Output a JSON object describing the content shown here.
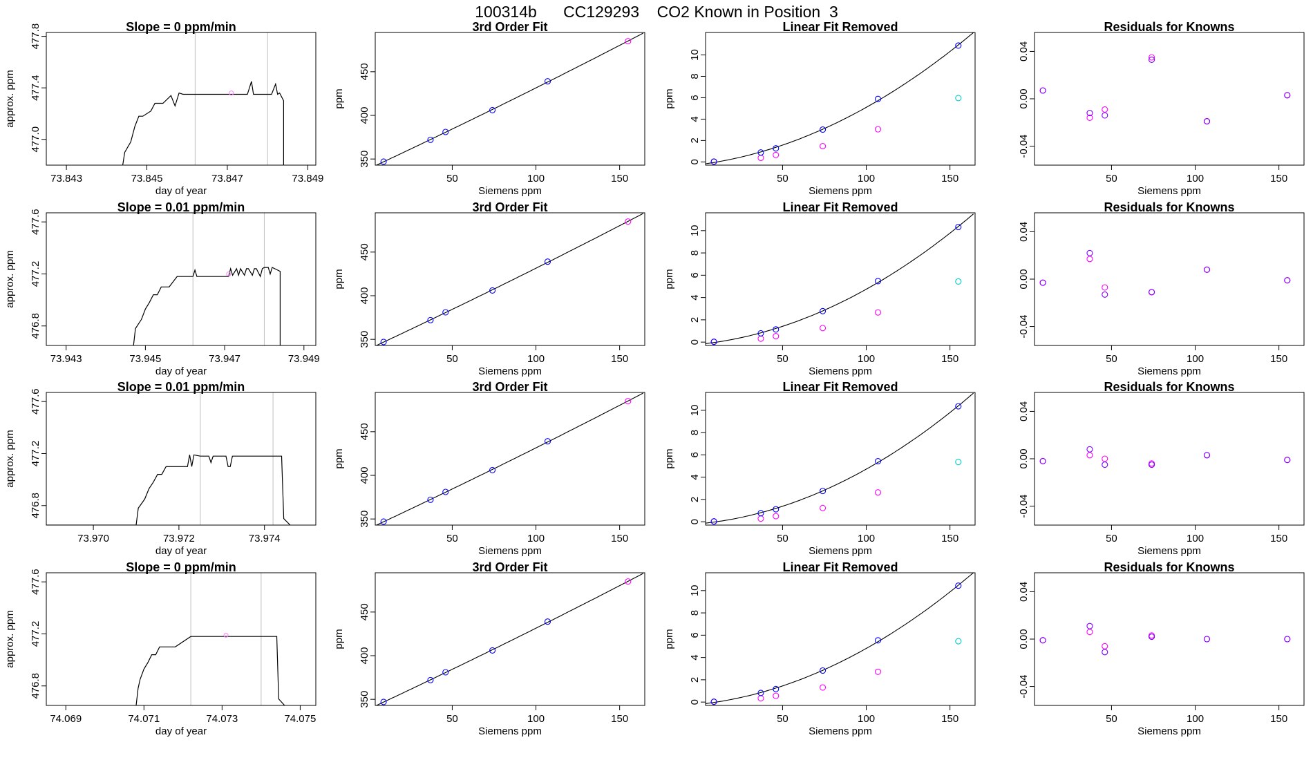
{
  "title": "100314b      CC129293    CO2 Known in Position  3",
  "colors": {
    "line": "#000000",
    "vline": "#bebebe",
    "blue": "#0000ff",
    "magenta": "#ff00ff",
    "cyan": "#00cccc",
    "purple": "#7f00ff",
    "pink": "#ff80ff"
  },
  "chart_data": [
    {
      "type": "line",
      "title": "Slope =  0  ppm/min",
      "xlabel": "day of year",
      "ylabel": "approx. ppm",
      "xlim": [
        73.8425,
        73.8492
      ],
      "ylim": [
        476.8,
        477.83
      ],
      "xticks": [
        "73.843",
        "73.845",
        "73.847",
        "73.849"
      ],
      "yticks": [
        "477.0",
        "477.4",
        "477.8"
      ],
      "vlines": [
        73.8462,
        73.848
      ],
      "series": [
        {
          "x": [
            73.8444,
            73.84445,
            73.8446,
            73.8447,
            73.8448,
            73.8449,
            73.8451,
            73.8452,
            73.8454,
            73.8456,
            73.8457,
            73.8458,
            73.8459,
            73.8462,
            73.8475,
            73.8476,
            73.84765,
            73.8477,
            73.8481,
            73.8482,
            73.84825,
            73.8483,
            73.8484,
            73.8484
          ],
          "y": [
            476.8,
            476.9,
            476.98,
            477.1,
            477.18,
            477.18,
            477.22,
            477.28,
            477.28,
            477.34,
            477.26,
            477.36,
            477.35,
            477.35,
            477.35,
            477.45,
            477.35,
            477.35,
            477.35,
            477.43,
            477.35,
            477.36,
            477.3,
            476.8
          ]
        }
      ],
      "markers": [
        {
          "x": 73.8471,
          "y": 477.36
        }
      ]
    },
    {
      "type": "scatter",
      "title": "3rd Order Fit",
      "xlabel": "Siemens ppm",
      "ylabel": "ppm",
      "xlim": [
        4,
        165
      ],
      "ylim": [
        343,
        495
      ],
      "xticks": [
        "50",
        "100",
        "150"
      ],
      "yticks": [
        "350",
        "400",
        "450"
      ],
      "points": [
        {
          "x": 9,
          "y": 347
        },
        {
          "x": 37,
          "y": 372
        },
        {
          "x": 46,
          "y": 381
        },
        {
          "x": 74,
          "y": 406
        },
        {
          "x": 107,
          "y": 439
        },
        {
          "x": 155,
          "y": 485
        }
      ]
    },
    {
      "type": "scatter",
      "title": "Linear Fit Removed",
      "xlabel": "Siemens ppm",
      "ylabel": "ppm",
      "xlim": [
        4,
        165
      ],
      "ylim": [
        -0.3,
        12.1
      ],
      "xticks": [
        "50",
        "100",
        "150"
      ],
      "yticks": [
        "0",
        "2",
        "4",
        "6",
        "8",
        "10"
      ],
      "blue_points": [
        {
          "x": 9,
          "y": 0.03
        },
        {
          "x": 37,
          "y": 0.88
        },
        {
          "x": 46,
          "y": 1.27
        },
        {
          "x": 74,
          "y": 3.02
        },
        {
          "x": 107,
          "y": 5.89
        },
        {
          "x": 155,
          "y": 10.88
        }
      ],
      "magenta_points": [
        {
          "x": 9,
          "y": 0.03
        },
        {
          "x": 37,
          "y": 0.38
        },
        {
          "x": 46,
          "y": 0.65
        },
        {
          "x": 74,
          "y": 1.47
        },
        {
          "x": 107,
          "y": 3.05
        }
      ],
      "cyan_points": [
        {
          "x": 155,
          "y": 5.97
        }
      ]
    },
    {
      "type": "scatter",
      "title": "Residuals for Knowns",
      "xlabel": "Siemens ppm",
      "ylabel": "",
      "xlim": [
        4,
        165
      ],
      "ylim": [
        -0.056,
        0.056
      ],
      "xticks": [
        "50",
        "100",
        "150"
      ],
      "yticks": [
        "-0.04",
        "0.00",
        "0.04"
      ],
      "blue_points": [
        {
          "x": 9,
          "y": 0.007
        },
        {
          "x": 37,
          "y": -0.012
        },
        {
          "x": 46,
          "y": -0.014
        },
        {
          "x": 74,
          "y": 0.033
        },
        {
          "x": 107,
          "y": -0.019
        },
        {
          "x": 155,
          "y": 0.003
        }
      ],
      "magenta_points": [
        {
          "x": 9,
          "y": 0.007
        },
        {
          "x": 37,
          "y": -0.016
        },
        {
          "x": 46,
          "y": -0.009
        },
        {
          "x": 74,
          "y": 0.035
        },
        {
          "x": 107,
          "y": -0.019
        },
        {
          "x": 155,
          "y": 0.003
        }
      ]
    },
    {
      "type": "line",
      "title": "Slope =  0.01  ppm/min",
      "xlabel": "day of year",
      "ylabel": "approx. ppm",
      "xlim": [
        73.9425,
        73.9493
      ],
      "ylim": [
        476.65,
        477.67
      ],
      "xticks": [
        "73.943",
        "73.945",
        "73.947",
        "73.949"
      ],
      "yticks": [
        "476.8",
        "477.2",
        "477.6"
      ],
      "vlines": [
        73.9462,
        73.948
      ],
      "series": [
        {
          "x": [
            73.9447,
            73.94475,
            73.9449,
            73.945,
            73.9451,
            73.9452,
            73.9453,
            73.9454,
            73.9456,
            73.9458,
            73.9462,
            73.94625,
            73.9463,
            73.9471,
            73.94715,
            73.9472,
            73.9473,
            73.94735,
            73.9474,
            73.9475,
            73.94755,
            73.9476,
            73.9477,
            73.94775,
            73.9478,
            73.9479,
            73.94795,
            73.948,
            73.9481,
            73.94815,
            73.9482,
            73.9484,
            73.9484
          ],
          "y": [
            476.65,
            476.78,
            476.85,
            476.93,
            476.98,
            477.04,
            477.04,
            477.1,
            477.1,
            477.18,
            477.18,
            477.23,
            477.18,
            477.18,
            477.24,
            477.19,
            477.24,
            477.19,
            477.24,
            477.19,
            477.24,
            477.24,
            477.19,
            477.24,
            477.24,
            477.18,
            477.24,
            477.25,
            477.25,
            477.2,
            477.25,
            477.22,
            476.65
          ]
        }
      ],
      "markers": [
        {
          "x": 73.9471,
          "y": 477.2
        }
      ]
    },
    {
      "type": "scatter",
      "title": "3rd Order Fit",
      "xlabel": "Siemens ppm",
      "ylabel": "ppm",
      "xlim": [
        4,
        165
      ],
      "ylim": [
        343,
        495
      ],
      "xticks": [
        "50",
        "100",
        "150"
      ],
      "yticks": [
        "350",
        "400",
        "450"
      ],
      "points": [
        {
          "x": 9,
          "y": 347
        },
        {
          "x": 37,
          "y": 372
        },
        {
          "x": 46,
          "y": 381
        },
        {
          "x": 74,
          "y": 406
        },
        {
          "x": 107,
          "y": 439
        },
        {
          "x": 155,
          "y": 485
        }
      ]
    },
    {
      "type": "scatter",
      "title": "Linear Fit Removed",
      "xlabel": "Siemens ppm",
      "ylabel": "ppm",
      "xlim": [
        4,
        165
      ],
      "ylim": [
        -0.3,
        11.6
      ],
      "xticks": [
        "50",
        "100",
        "150"
      ],
      "yticks": [
        "0",
        "2",
        "4",
        "6",
        "8",
        "10"
      ],
      "blue_points": [
        {
          "x": 9,
          "y": 0.03
        },
        {
          "x": 37,
          "y": 0.79
        },
        {
          "x": 46,
          "y": 1.14
        },
        {
          "x": 74,
          "y": 2.78
        },
        {
          "x": 107,
          "y": 5.47
        },
        {
          "x": 155,
          "y": 10.33
        }
      ],
      "magenta_points": [
        {
          "x": 9,
          "y": 0.03
        },
        {
          "x": 37,
          "y": 0.31
        },
        {
          "x": 46,
          "y": 0.53
        },
        {
          "x": 74,
          "y": 1.26
        },
        {
          "x": 107,
          "y": 2.66
        }
      ],
      "cyan_points": [
        {
          "x": 155,
          "y": 5.44
        }
      ]
    },
    {
      "type": "scatter",
      "title": "Residuals for Knowns",
      "xlabel": "Siemens ppm",
      "ylabel": "",
      "xlim": [
        4,
        165
      ],
      "ylim": [
        -0.056,
        0.056
      ],
      "xticks": [
        "50",
        "100",
        "150"
      ],
      "yticks": [
        "-0.04",
        "0.00",
        "0.04"
      ],
      "blue_points": [
        {
          "x": 9,
          "y": -0.003
        },
        {
          "x": 37,
          "y": 0.022
        },
        {
          "x": 46,
          "y": -0.013
        },
        {
          "x": 74,
          "y": -0.011
        },
        {
          "x": 107,
          "y": 0.008
        },
        {
          "x": 155,
          "y": -0.001
        }
      ],
      "magenta_points": [
        {
          "x": 9,
          "y": -0.003
        },
        {
          "x": 37,
          "y": 0.017
        },
        {
          "x": 46,
          "y": -0.007
        },
        {
          "x": 74,
          "y": -0.011
        },
        {
          "x": 107,
          "y": 0.008
        },
        {
          "x": 155,
          "y": -0.001
        }
      ]
    },
    {
      "type": "line",
      "title": "Slope =  0.01  ppm/min",
      "xlabel": "day of year",
      "ylabel": "approx. ppm",
      "xlim": [
        73.9689,
        73.9752
      ],
      "ylim": [
        476.65,
        477.67
      ],
      "xticks": [
        "73.970",
        "73.972",
        "73.974"
      ],
      "yticks": [
        "476.8",
        "477.2",
        "477.6"
      ],
      "vlines": [
        73.9725,
        73.9742
      ],
      "series": [
        {
          "x": [
            73.9689,
            73.971,
            73.97105,
            73.9712,
            73.9713,
            73.9714,
            73.9715,
            73.9716,
            73.9717,
            73.9719,
            73.9722,
            73.97225,
            73.9723,
            73.97235,
            73.9725,
            73.9727,
            73.97275,
            73.9728,
            73.9729,
            73.9731,
            73.97315,
            73.9732,
            73.97325,
            73.9733,
            73.974,
            73.9744,
            73.97445,
            73.9746
          ],
          "y": [
            476.65,
            476.65,
            476.78,
            476.85,
            476.93,
            476.98,
            477.04,
            477.04,
            477.1,
            477.1,
            477.1,
            477.19,
            477.1,
            477.19,
            477.18,
            477.18,
            477.13,
            477.18,
            477.18,
            477.18,
            477.1,
            477.1,
            477.18,
            477.18,
            477.18,
            477.18,
            476.7,
            476.65
          ]
        }
      ],
      "markers": []
    },
    {
      "type": "scatter",
      "title": "3rd Order Fit",
      "xlabel": "Siemens ppm",
      "ylabel": "ppm",
      "xlim": [
        4,
        165
      ],
      "ylim": [
        343,
        495
      ],
      "xticks": [
        "50",
        "100",
        "150"
      ],
      "yticks": [
        "350",
        "400",
        "450"
      ],
      "points": [
        {
          "x": 9,
          "y": 347
        },
        {
          "x": 37,
          "y": 372
        },
        {
          "x": 46,
          "y": 381
        },
        {
          "x": 74,
          "y": 406
        },
        {
          "x": 107,
          "y": 439
        },
        {
          "x": 155,
          "y": 485
        }
      ]
    },
    {
      "type": "scatter",
      "title": "Linear Fit Removed",
      "xlabel": "Siemens ppm",
      "ylabel": "ppm",
      "xlim": [
        4,
        165
      ],
      "ylim": [
        -0.3,
        11.6
      ],
      "xticks": [
        "50",
        "100",
        "150"
      ],
      "yticks": [
        "0",
        "2",
        "4",
        "6",
        "8",
        "10"
      ],
      "blue_points": [
        {
          "x": 9,
          "y": 0.03
        },
        {
          "x": 37,
          "y": 0.77
        },
        {
          "x": 46,
          "y": 1.12
        },
        {
          "x": 74,
          "y": 2.76
        },
        {
          "x": 107,
          "y": 5.43
        },
        {
          "x": 155,
          "y": 10.36
        }
      ],
      "magenta_points": [
        {
          "x": 9,
          "y": 0.03
        },
        {
          "x": 37,
          "y": 0.28
        },
        {
          "x": 46,
          "y": 0.5
        },
        {
          "x": 74,
          "y": 1.23
        },
        {
          "x": 107,
          "y": 2.63
        }
      ],
      "cyan_points": [
        {
          "x": 155,
          "y": 5.36
        }
      ]
    },
    {
      "type": "scatter",
      "title": "Residuals for Knowns",
      "xlabel": "Siemens ppm",
      "ylabel": "",
      "xlim": [
        4,
        165
      ],
      "ylim": [
        -0.056,
        0.056
      ],
      "xticks": [
        "50",
        "100",
        "150"
      ],
      "yticks": [
        "-0.04",
        "0.00",
        "0.04"
      ],
      "blue_points": [
        {
          "x": 9,
          "y": -0.002
        },
        {
          "x": 37,
          "y": 0.008
        },
        {
          "x": 46,
          "y": -0.005
        },
        {
          "x": 74,
          "y": -0.005
        },
        {
          "x": 107,
          "y": 0.003
        },
        {
          "x": 155,
          "y": -0.001
        }
      ],
      "magenta_points": [
        {
          "x": 9,
          "y": -0.002
        },
        {
          "x": 37,
          "y": 0.003
        },
        {
          "x": 46,
          "y": 0.0
        },
        {
          "x": 74,
          "y": -0.004
        },
        {
          "x": 107,
          "y": 0.003
        },
        {
          "x": 155,
          "y": -0.001
        }
      ]
    },
    {
      "type": "line",
      "title": "Slope =  0  ppm/min",
      "xlabel": "day of year",
      "ylabel": "approx. ppm",
      "xlim": [
        74.0685,
        74.0754
      ],
      "ylim": [
        476.65,
        477.67
      ],
      "xticks": [
        "74.069",
        "74.071",
        "74.073",
        "74.075"
      ],
      "yticks": [
        "476.8",
        "477.2",
        "477.6"
      ],
      "vlines": [
        74.0722,
        74.074
      ],
      "series": [
        {
          "x": [
            74.0708,
            74.07085,
            74.0709,
            74.071,
            74.0711,
            74.0712,
            74.0713,
            74.0714,
            74.0716,
            74.0718,
            74.0722,
            74.0744,
            74.07445,
            74.0746
          ],
          "y": [
            476.65,
            476.78,
            476.85,
            476.93,
            476.98,
            477.04,
            477.04,
            477.1,
            477.1,
            477.1,
            477.18,
            477.18,
            476.7,
            476.65
          ]
        }
      ],
      "markers": [
        {
          "x": 74.0731,
          "y": 477.19
        }
      ]
    },
    {
      "type": "scatter",
      "title": "3rd Order Fit",
      "xlabel": "Siemens ppm",
      "ylabel": "ppm",
      "xlim": [
        4,
        165
      ],
      "ylim": [
        343,
        495
      ],
      "xticks": [
        "50",
        "100",
        "150"
      ],
      "yticks": [
        "350",
        "400",
        "450"
      ],
      "points": [
        {
          "x": 9,
          "y": 347
        },
        {
          "x": 37,
          "y": 372
        },
        {
          "x": 46,
          "y": 381
        },
        {
          "x": 74,
          "y": 406
        },
        {
          "x": 107,
          "y": 439
        },
        {
          "x": 155,
          "y": 485
        }
      ]
    },
    {
      "type": "scatter",
      "title": "Linear Fit Removed",
      "xlabel": "Siemens ppm",
      "ylabel": "ppm",
      "xlim": [
        4,
        165
      ],
      "ylim": [
        -0.3,
        11.6
      ],
      "xticks": [
        "50",
        "100",
        "150"
      ],
      "yticks": [
        "0",
        "2",
        "4",
        "6",
        "8",
        "10"
      ],
      "blue_points": [
        {
          "x": 9,
          "y": 0.03
        },
        {
          "x": 37,
          "y": 0.82
        },
        {
          "x": 46,
          "y": 1.17
        },
        {
          "x": 74,
          "y": 2.83
        },
        {
          "x": 107,
          "y": 5.54
        },
        {
          "x": 155,
          "y": 10.44
        }
      ],
      "magenta_points": [
        {
          "x": 9,
          "y": 0.03
        },
        {
          "x": 37,
          "y": 0.34
        },
        {
          "x": 46,
          "y": 0.56
        },
        {
          "x": 74,
          "y": 1.31
        },
        {
          "x": 107,
          "y": 2.72
        }
      ],
      "cyan_points": [
        {
          "x": 155,
          "y": 5.46
        }
      ]
    },
    {
      "type": "scatter",
      "title": "Residuals for Knowns",
      "xlabel": "Siemens ppm",
      "ylabel": "",
      "xlim": [
        4,
        165
      ],
      "ylim": [
        -0.056,
        0.056
      ],
      "xticks": [
        "50",
        "100",
        "150"
      ],
      "yticks": [
        "-0.04",
        "0.00",
        "0.04"
      ],
      "blue_points": [
        {
          "x": 9,
          "y": -0.001
        },
        {
          "x": 37,
          "y": 0.011
        },
        {
          "x": 46,
          "y": -0.011
        },
        {
          "x": 74,
          "y": 0.002
        },
        {
          "x": 107,
          "y": 0.0
        },
        {
          "x": 155,
          "y": 0.0
        }
      ],
      "magenta_points": [
        {
          "x": 9,
          "y": -0.001
        },
        {
          "x": 37,
          "y": 0.006
        },
        {
          "x": 46,
          "y": -0.006
        },
        {
          "x": 74,
          "y": 0.003
        },
        {
          "x": 107,
          "y": 0.0
        },
        {
          "x": 155,
          "y": 0.0
        }
      ]
    }
  ]
}
